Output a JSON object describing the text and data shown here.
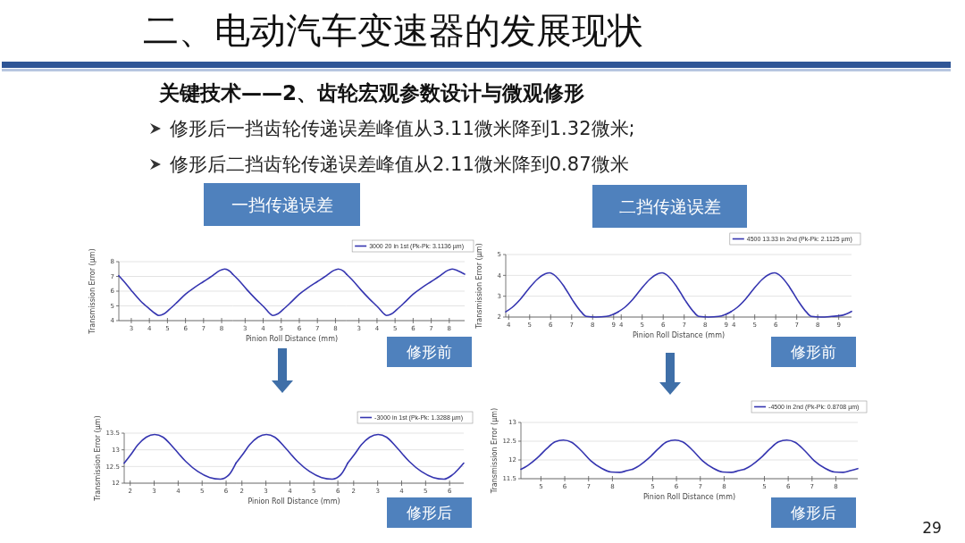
{
  "chart_data": [
    {
      "type": "other",
      "title": "二、电动汽车变速器的发展现状",
      "subtitle": "关键技术——2、齿轮宏观参数设计与微观修形",
      "annotations": [
        "修形后一挡齿轮传递误差峰值从3.11微米降到1.32微米;",
        "修形后二挡齿轮传递误差峰值从2.11微米降到0.87微米",
        "29"
      ]
    },
    {
      "type": "line",
      "ylabel": "Transmission Error (µm)",
      "grid": "y",
      "marker": "none",
      "x": [
        2.31,
        2.6,
        3.0,
        3.5,
        4.0,
        4.3,
        4.53,
        4.8,
        5.1,
        5.5,
        6.0,
        6.5,
        7.0,
        7.5,
        7.9,
        8.16,
        8.45,
        8.61
      ],
      "series": [
        {
          "color": "#3535b0",
          "values": [
            7.05,
            6.65,
            6.05,
            5.35,
            4.8,
            4.5,
            4.35,
            4.45,
            4.75,
            5.2,
            5.8,
            6.25,
            6.65,
            7.05,
            7.4,
            7.5,
            7.35,
            7.15
          ]
        }
      ],
      "xlim": [
        2.31,
        8.61
      ],
      "ylim": [
        4,
        8
      ],
      "yticks": [
        4,
        5,
        6,
        7,
        8
      ],
      "xticks": [
        3,
        4,
        5,
        6,
        7,
        8
      ]
    },
    {
      "type": "line",
      "title": "一挡传递误差",
      "xlabel": "Pinion Roll Distance (mm)",
      "grid": "y",
      "marker": "none",
      "tick_labels": "x",
      "x": [
        2.31,
        2.6,
        3.1,
        3.6,
        4.1,
        4.35,
        4.53,
        4.8,
        5.1,
        5.5,
        6.0,
        6.5,
        7.0,
        7.5,
        7.9,
        8.16,
        8.45,
        8.61
      ],
      "series": [
        {
          "color": "#3535b0",
          "values": [
            7.15,
            6.8,
            6.1,
            5.45,
            4.85,
            4.5,
            4.35,
            4.45,
            4.75,
            5.2,
            5.8,
            6.25,
            6.65,
            7.05,
            7.4,
            7.5,
            7.35,
            7.15
          ]
        }
      ],
      "xlim": [
        2.31,
        8.61
      ],
      "ylim": [
        4,
        8
      ],
      "yticks": [
        4,
        5,
        6,
        7,
        8
      ],
      "xticks": [
        3,
        4,
        5,
        6,
        7,
        8
      ]
    },
    {
      "type": "line",
      "annotations": [
        "修形前"
      ],
      "grid": "y",
      "legend": "top right",
      "marker": "none",
      "tick_labels": "x",
      "x": [
        2.31,
        2.6,
        3.1,
        3.6,
        4.1,
        4.35,
        4.53,
        4.8,
        5.1,
        5.5,
        6.0,
        6.5,
        7.0,
        7.5,
        7.9,
        8.16,
        8.45,
        8.85
      ],
      "series": [
        {
          "name": "3000 20 in 1st (Pk-Pk: 3.1136 µm)",
          "color": "#3535b0",
          "values": [
            7.15,
            6.8,
            6.1,
            5.45,
            4.85,
            4.5,
            4.35,
            4.45,
            4.75,
            5.2,
            5.8,
            6.25,
            6.65,
            7.05,
            7.4,
            7.5,
            7.4,
            7.15
          ]
        }
      ],
      "xlim": [
        2.31,
        8.85
      ],
      "ylim": [
        4,
        8
      ],
      "yticks": [
        4,
        5,
        6,
        7,
        8
      ],
      "xticks": [
        3,
        4,
        5,
        6,
        7,
        8
      ]
    },
    {
      "type": "line",
      "ylabel": "Transmission Error (µm)",
      "grid": "y",
      "marker": "none",
      "x": [
        3.86,
        4.15,
        4.55,
        4.95,
        5.35,
        5.75,
        5.95,
        6.25,
        6.65,
        7.05,
        7.45,
        7.7,
        8.15,
        8.65,
        8.95,
        9.22
      ],
      "series": [
        {
          "color": "#3535b0",
          "values": [
            2.25,
            2.45,
            2.85,
            3.35,
            3.8,
            4.08,
            4.12,
            3.95,
            3.45,
            2.8,
            2.25,
            2.03,
            2.0,
            2.03,
            2.12,
            2.25
          ]
        }
      ],
      "xlim": [
        3.86,
        9.22
      ],
      "ylim": [
        2,
        5
      ],
      "yticks": [
        2,
        3,
        4,
        5
      ],
      "xticks": [
        4,
        5,
        6,
        7,
        8,
        9
      ]
    },
    {
      "type": "line",
      "title": "二挡传递误差",
      "xlabel": "Pinion Roll Distance (mm)",
      "grid": "y",
      "marker": "none",
      "tick_labels": "x",
      "x": [
        3.86,
        4.15,
        4.55,
        4.95,
        5.35,
        5.75,
        5.95,
        6.25,
        6.65,
        7.05,
        7.45,
        7.7,
        8.15,
        8.65,
        8.95,
        9.22
      ],
      "series": [
        {
          "color": "#3535b0",
          "values": [
            2.25,
            2.45,
            2.85,
            3.35,
            3.8,
            4.08,
            4.12,
            3.95,
            3.45,
            2.8,
            2.25,
            2.03,
            2.0,
            2.03,
            2.12,
            2.25
          ]
        }
      ],
      "xlim": [
        3.86,
        9.22
      ],
      "ylim": [
        2,
        5
      ],
      "yticks": [
        2,
        3,
        4,
        5
      ],
      "xticks": [
        4,
        5,
        6,
        7,
        8,
        9
      ]
    },
    {
      "type": "line",
      "annotations": [
        "修形前"
      ],
      "grid": "y",
      "legend": "top right",
      "marker": "none",
      "tick_labels": "x",
      "x": [
        3.86,
        4.15,
        4.55,
        4.95,
        5.35,
        5.75,
        5.95,
        6.25,
        6.65,
        7.05,
        7.45,
        7.7,
        8.15,
        8.65,
        9.15,
        9.61
      ],
      "series": [
        {
          "name": "4500 13.33 in 2nd (Pk-Pk: 2.1125 µm)",
          "color": "#3535b0",
          "values": [
            2.25,
            2.45,
            2.85,
            3.35,
            3.8,
            4.08,
            4.12,
            3.95,
            3.45,
            2.8,
            2.25,
            2.03,
            2.0,
            2.03,
            2.08,
            2.27
          ]
        }
      ],
      "xlim": [
        3.86,
        9.61
      ],
      "ylim": [
        2,
        5
      ],
      "yticks": [
        2,
        3,
        4,
        5
      ],
      "xticks": [
        4,
        5,
        6,
        7,
        8,
        9
      ]
    },
    {
      "type": "line",
      "ylabel": "Transmission Error (µm)",
      "grid": "y",
      "marker": "none",
      "x": [
        1.75,
        2.02,
        2.32,
        2.67,
        3.02,
        3.37,
        3.82,
        4.32,
        4.82,
        5.32,
        5.77,
        6.12,
        6.41
      ],
      "series": [
        {
          "color": "#3535b0",
          "values": [
            12.6,
            12.85,
            13.15,
            13.38,
            13.46,
            13.38,
            13.05,
            12.65,
            12.35,
            12.17,
            12.12,
            12.25,
            12.6
          ]
        }
      ],
      "xlim": [
        1.75,
        6.41
      ],
      "ylim": [
        12,
        13.5
      ],
      "yticks": [
        12,
        12.5,
        13,
        13.5
      ],
      "xticks": [
        2,
        3,
        4,
        5,
        6
      ]
    },
    {
      "type": "line",
      "xlabel": "Pinion Roll Distance (mm)",
      "grid": "y",
      "marker": "none",
      "tick_labels": "x",
      "x": [
        1.75,
        2.02,
        2.32,
        2.67,
        3.02,
        3.37,
        3.82,
        4.32,
        4.82,
        5.32,
        5.77,
        6.12,
        6.41
      ],
      "series": [
        {
          "color": "#3535b0",
          "values": [
            12.6,
            12.85,
            13.15,
            13.38,
            13.46,
            13.38,
            13.05,
            12.65,
            12.35,
            12.17,
            12.12,
            12.25,
            12.6
          ]
        }
      ],
      "xlim": [
        1.75,
        6.41
      ],
      "ylim": [
        12,
        13.5
      ],
      "yticks": [
        12,
        12.5,
        13,
        13.5
      ],
      "xticks": [
        2,
        3,
        4,
        5,
        6
      ]
    },
    {
      "type": "line",
      "annotations": [
        "修形后"
      ],
      "grid": "y",
      "legend": "top right",
      "marker": "none",
      "tick_labels": "x",
      "x": [
        1.75,
        2.02,
        2.32,
        2.67,
        3.02,
        3.37,
        3.82,
        4.32,
        4.82,
        5.32,
        5.77,
        6.12,
        6.59
      ],
      "series": [
        {
          "name": "-3000 in 1st (Pk-Pk: 1.3288 µm)",
          "color": "#3535b0",
          "values": [
            12.6,
            12.85,
            13.15,
            13.38,
            13.46,
            13.38,
            13.05,
            12.65,
            12.35,
            12.17,
            12.12,
            12.25,
            12.6
          ]
        }
      ],
      "xlim": [
        1.75,
        6.59
      ],
      "ylim": [
        12,
        13.5
      ],
      "yticks": [
        12,
        12.5,
        13,
        13.5
      ],
      "xticks": [
        2,
        3,
        4,
        5,
        6
      ]
    },
    {
      "type": "line",
      "ylabel": "Transmission Error (µm)",
      "grid": "y",
      "marker": "none",
      "x": [
        4.16,
        4.44,
        4.84,
        5.24,
        5.59,
        5.94,
        6.29,
        6.69,
        7.09,
        7.54,
        7.94,
        8.31,
        8.64,
        8.85
      ],
      "series": [
        {
          "color": "#3535b0",
          "values": [
            11.75,
            11.85,
            12.05,
            12.3,
            12.48,
            12.53,
            12.47,
            12.25,
            11.98,
            11.78,
            11.68,
            11.67,
            11.72,
            11.75
          ]
        }
      ],
      "xlim": [
        4.16,
        8.85
      ],
      "ylim": [
        11.5,
        13
      ],
      "yticks": [
        11.5,
        12,
        12.5,
        13
      ],
      "xticks": [
        5,
        6,
        7,
        8
      ]
    },
    {
      "type": "line",
      "xlabel": "Pinion Roll Distance (mm)",
      "grid": "y",
      "marker": "none",
      "tick_labels": "x",
      "x": [
        4.16,
        4.44,
        4.84,
        5.24,
        5.59,
        5.94,
        6.29,
        6.69,
        7.09,
        7.54,
        7.94,
        8.31,
        8.64,
        8.85
      ],
      "series": [
        {
          "color": "#3535b0",
          "values": [
            11.75,
            11.85,
            12.05,
            12.3,
            12.48,
            12.53,
            12.47,
            12.25,
            11.98,
            11.78,
            11.68,
            11.67,
            11.72,
            11.75
          ]
        }
      ],
      "xlim": [
        4.16,
        8.85
      ],
      "ylim": [
        11.5,
        13
      ],
      "yticks": [
        11.5,
        12,
        12.5,
        13
      ],
      "xticks": [
        5,
        6,
        7,
        8
      ]
    },
    {
      "type": "line",
      "annotations": [
        "修形后"
      ],
      "grid": "y",
      "legend": "top right",
      "marker": "none",
      "tick_labels": "x",
      "x": [
        4.16,
        4.44,
        4.84,
        5.24,
        5.59,
        5.94,
        6.29,
        6.69,
        7.09,
        7.54,
        7.94,
        8.31,
        8.64,
        8.92
      ],
      "series": [
        {
          "name": "-4500 in 2nd (Pk-Pk: 0.8708 µm)",
          "color": "#3535b0",
          "values": [
            11.75,
            11.85,
            12.05,
            12.3,
            12.48,
            12.53,
            12.47,
            12.25,
            11.98,
            11.78,
            11.68,
            11.67,
            11.72,
            11.77
          ]
        }
      ],
      "xlim": [
        4.16,
        8.92
      ],
      "ylim": [
        11.5,
        13
      ],
      "yticks": [
        11.5,
        12,
        12.5,
        13
      ],
      "xticks": [
        5,
        6,
        7,
        8
      ]
    }
  ]
}
